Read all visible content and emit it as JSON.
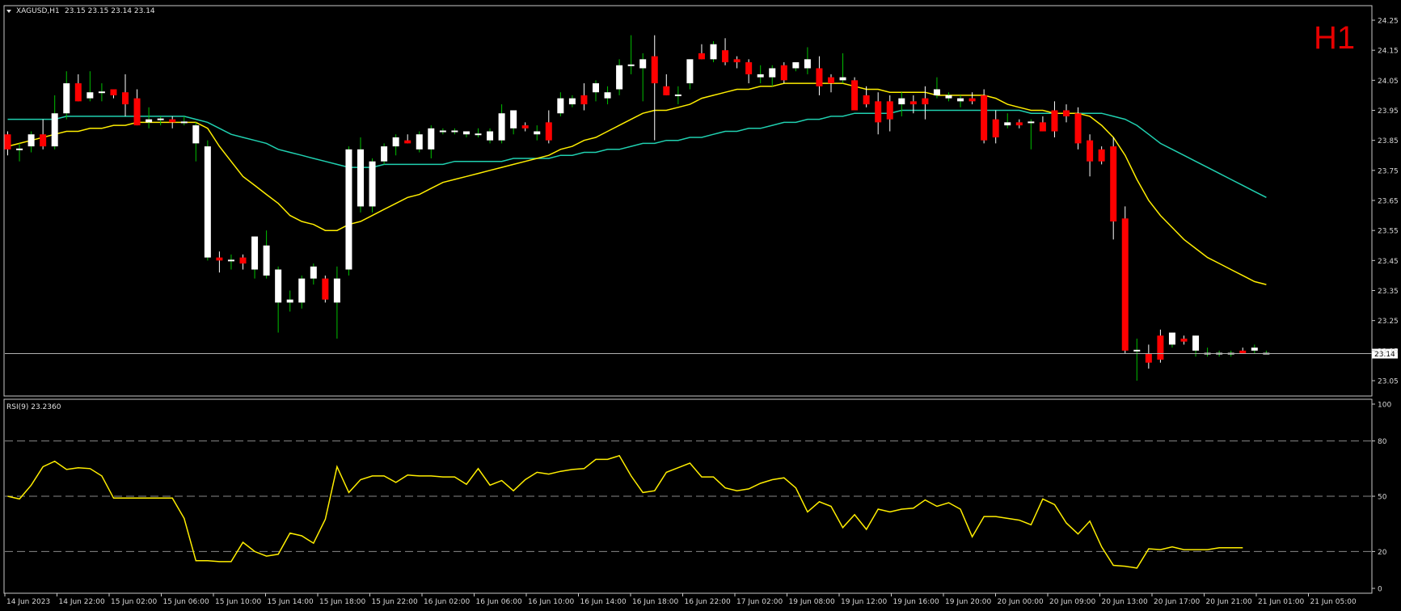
{
  "header": {
    "symbol": "XAGUSD,H1",
    "ohlc": "23.15 23.15 23.14 23.14",
    "timeframe_label": "H1"
  },
  "colors": {
    "background": "#000000",
    "frame": "#c8c8c8",
    "bull_body": "#ffffff",
    "bear_body": "#ff0000",
    "wick_up": "#00c000",
    "wick_down": "#ffffff",
    "ma_fast": "#ffee00",
    "ma_slow": "#20d0b0",
    "rsi_line": "#ffee00",
    "level_line": "#888888"
  },
  "chart_data": [
    {
      "type": "candlestick",
      "title": "",
      "ylim": [
        23.02,
        24.28
      ],
      "y_ticks": [
        "24.25",
        "24.15",
        "24.05",
        "23.95",
        "23.85",
        "23.75",
        "23.65",
        "23.55",
        "23.45",
        "23.35",
        "23.25",
        "23.15",
        "23.05"
      ],
      "x_ticks": [
        "14 Jun 2023",
        "14 Jun 22:00",
        "15 Jun 02:00",
        "15 Jun 06:00",
        "15 Jun 10:00",
        "15 Jun 14:00",
        "15 Jun 18:00",
        "15 Jun 22:00",
        "16 Jun 02:00",
        "16 Jun 06:00",
        "16 Jun 10:00",
        "16 Jun 14:00",
        "16 Jun 18:00",
        "16 Jun 22:00",
        "17 Jun 02:00",
        "19 Jun 08:00",
        "19 Jun 12:00",
        "19 Jun 16:00",
        "19 Jun 20:00",
        "20 Jun 00:00",
        "20 Jun 09:00",
        "20 Jun 13:00",
        "20 Jun 17:00",
        "20 Jun 21:00",
        "21 Jun 01:00",
        "21 Jun 05:00"
      ],
      "current_price_label": "23.14",
      "current_price": 23.14,
      "candles": [
        [
          23.87,
          23.88,
          23.8,
          23.82
        ],
        [
          23.82,
          23.84,
          23.78,
          23.82
        ],
        [
          23.83,
          23.88,
          23.81,
          23.87
        ],
        [
          23.87,
          23.92,
          23.82,
          23.83
        ],
        [
          23.83,
          24.0,
          23.82,
          23.94
        ],
        [
          23.94,
          24.08,
          23.92,
          24.04
        ],
        [
          24.04,
          24.07,
          23.98,
          23.98
        ],
        [
          23.99,
          24.08,
          23.98,
          24.01
        ],
        [
          24.01,
          24.04,
          23.98,
          24.01
        ],
        [
          24.02,
          24.02,
          23.99,
          24.0
        ],
        [
          24.01,
          24.07,
          23.93,
          23.97
        ],
        [
          23.99,
          24.02,
          23.9,
          23.9
        ],
        [
          23.91,
          23.96,
          23.89,
          23.92
        ],
        [
          23.92,
          23.93,
          23.9,
          23.92
        ],
        [
          23.92,
          23.93,
          23.89,
          23.91
        ],
        [
          23.91,
          23.93,
          23.9,
          23.91
        ],
        [
          23.84,
          23.91,
          23.78,
          23.9
        ],
        [
          23.46,
          23.85,
          23.45,
          23.83
        ],
        [
          23.46,
          23.48,
          23.41,
          23.45
        ],
        [
          23.45,
          23.47,
          23.42,
          23.45
        ],
        [
          23.46,
          23.47,
          23.42,
          23.44
        ],
        [
          23.42,
          23.53,
          23.39,
          23.53
        ],
        [
          23.4,
          23.55,
          23.39,
          23.5
        ],
        [
          23.31,
          23.43,
          23.21,
          23.42
        ],
        [
          23.31,
          23.35,
          23.28,
          23.32
        ],
        [
          23.31,
          23.4,
          23.29,
          23.39
        ],
        [
          23.39,
          23.44,
          23.37,
          23.43
        ],
        [
          23.39,
          23.4,
          23.31,
          23.32
        ],
        [
          23.31,
          23.43,
          23.19,
          23.39
        ],
        [
          23.42,
          23.83,
          23.4,
          23.82
        ],
        [
          23.63,
          23.86,
          23.61,
          23.82
        ],
        [
          23.63,
          23.79,
          23.61,
          23.78
        ],
        [
          23.78,
          23.84,
          23.77,
          23.83
        ],
        [
          23.83,
          23.87,
          23.8,
          23.86
        ],
        [
          23.85,
          23.87,
          23.84,
          23.84
        ],
        [
          23.82,
          23.88,
          23.81,
          23.87
        ],
        [
          23.82,
          23.9,
          23.79,
          23.89
        ],
        [
          23.88,
          23.89,
          23.87,
          23.88
        ],
        [
          23.88,
          23.89,
          23.87,
          23.88
        ],
        [
          23.87,
          23.88,
          23.86,
          23.88
        ],
        [
          23.87,
          23.89,
          23.86,
          23.87
        ],
        [
          23.85,
          23.89,
          23.84,
          23.88
        ],
        [
          23.85,
          23.97,
          23.84,
          23.94
        ],
        [
          23.89,
          23.95,
          23.87,
          23.95
        ],
        [
          23.9,
          23.91,
          23.88,
          23.89
        ],
        [
          23.87,
          23.9,
          23.85,
          23.88
        ],
        [
          23.91,
          23.95,
          23.84,
          23.85
        ],
        [
          23.94,
          24.01,
          23.93,
          23.99
        ],
        [
          23.97,
          24.0,
          23.96,
          23.99
        ],
        [
          24.0,
          24.04,
          23.95,
          23.97
        ],
        [
          24.01,
          24.05,
          23.98,
          24.04
        ],
        [
          23.99,
          24.03,
          23.97,
          24.01
        ],
        [
          24.02,
          24.12,
          24.0,
          24.1
        ],
        [
          24.1,
          24.2,
          24.07,
          24.1
        ],
        [
          24.09,
          24.14,
          23.98,
          24.12
        ],
        [
          24.13,
          24.2,
          23.85,
          24.04
        ],
        [
          24.03,
          24.07,
          24.0,
          24.0
        ],
        [
          24.0,
          24.03,
          23.97,
          24.0
        ],
        [
          24.04,
          24.12,
          24.02,
          24.12
        ],
        [
          24.14,
          24.17,
          24.12,
          24.12
        ],
        [
          24.12,
          24.18,
          24.11,
          24.17
        ],
        [
          24.15,
          24.19,
          24.1,
          24.11
        ],
        [
          24.12,
          24.13,
          24.09,
          24.11
        ],
        [
          24.11,
          24.12,
          24.04,
          24.07
        ],
        [
          24.06,
          24.1,
          24.04,
          24.07
        ],
        [
          24.06,
          24.1,
          24.03,
          24.09
        ],
        [
          24.1,
          24.11,
          24.04,
          24.05
        ],
        [
          24.09,
          24.11,
          24.08,
          24.11
        ],
        [
          24.09,
          24.16,
          24.07,
          24.12
        ],
        [
          24.09,
          24.13,
          24.0,
          24.03
        ],
        [
          24.06,
          24.07,
          24.01,
          24.04
        ],
        [
          24.05,
          24.14,
          24.04,
          24.06
        ],
        [
          24.05,
          24.06,
          23.95,
          23.95
        ],
        [
          24.0,
          24.03,
          23.96,
          23.97
        ],
        [
          23.98,
          24.01,
          23.87,
          23.91
        ],
        [
          23.98,
          24.0,
          23.88,
          23.92
        ],
        [
          23.97,
          24.01,
          23.93,
          23.99
        ],
        [
          23.98,
          24.0,
          23.94,
          23.97
        ],
        [
          23.99,
          24.03,
          23.92,
          23.97
        ],
        [
          24.0,
          24.06,
          23.99,
          24.02
        ],
        [
          23.99,
          24.01,
          23.98,
          24.0
        ],
        [
          23.98,
          24.0,
          23.96,
          23.99
        ],
        [
          23.99,
          24.01,
          23.97,
          23.98
        ],
        [
          24.0,
          24.02,
          23.84,
          23.85
        ],
        [
          23.92,
          23.95,
          23.84,
          23.86
        ],
        [
          23.9,
          23.94,
          23.89,
          23.91
        ],
        [
          23.91,
          23.92,
          23.89,
          23.9
        ],
        [
          23.91,
          23.92,
          23.82,
          23.91
        ],
        [
          23.91,
          23.93,
          23.88,
          23.88
        ],
        [
          23.95,
          23.98,
          23.86,
          23.88
        ],
        [
          23.95,
          23.97,
          23.91,
          23.93
        ],
        [
          23.94,
          23.96,
          23.82,
          23.84
        ],
        [
          23.85,
          23.87,
          23.73,
          23.78
        ],
        [
          23.82,
          23.83,
          23.77,
          23.78
        ],
        [
          23.83,
          23.86,
          23.52,
          23.58
        ],
        [
          23.59,
          23.63,
          23.14,
          23.15
        ],
        [
          23.15,
          23.19,
          23.05,
          23.15
        ],
        [
          23.14,
          23.17,
          23.09,
          23.11
        ],
        [
          23.2,
          23.22,
          23.11,
          23.12
        ],
        [
          23.17,
          23.21,
          23.16,
          23.21
        ],
        [
          23.19,
          23.2,
          23.17,
          23.18
        ],
        [
          23.15,
          23.2,
          23.13,
          23.2
        ],
        [
          23.14,
          23.16,
          23.13,
          23.14
        ],
        [
          23.14,
          23.15,
          23.13,
          23.14
        ],
        [
          23.14,
          23.15,
          23.13,
          23.14
        ],
        [
          23.15,
          23.16,
          23.14,
          23.14
        ],
        [
          23.15,
          23.17,
          23.14,
          23.16
        ],
        [
          23.14,
          23.15,
          23.14,
          23.14
        ]
      ],
      "ma_fast": [
        23.83,
        23.84,
        23.85,
        23.86,
        23.87,
        23.88,
        23.88,
        23.89,
        23.89,
        23.9,
        23.9,
        23.91,
        23.91,
        23.91,
        23.91,
        23.91,
        23.91,
        23.89,
        23.83,
        23.78,
        23.73,
        23.7,
        23.67,
        23.64,
        23.6,
        23.58,
        23.57,
        23.55,
        23.55,
        23.57,
        23.58,
        23.6,
        23.62,
        23.64,
        23.66,
        23.67,
        23.69,
        23.71,
        23.72,
        23.73,
        23.74,
        23.75,
        23.76,
        23.77,
        23.78,
        23.79,
        23.8,
        23.82,
        23.83,
        23.85,
        23.86,
        23.88,
        23.9,
        23.92,
        23.94,
        23.95,
        23.95,
        23.96,
        23.97,
        23.99,
        24.0,
        24.01,
        24.02,
        24.02,
        24.03,
        24.03,
        24.04,
        24.04,
        24.04,
        24.04,
        24.04,
        24.04,
        24.03,
        24.02,
        24.02,
        24.01,
        24.01,
        24.01,
        24.01,
        24.0,
        24.0,
        24.0,
        24.0,
        24.0,
        23.99,
        23.97,
        23.96,
        23.95,
        23.95,
        23.94,
        23.94,
        23.94,
        23.93,
        23.9,
        23.86,
        23.8,
        23.72,
        23.65,
        23.6,
        23.56,
        23.52,
        23.49,
        23.46,
        23.44,
        23.42,
        23.4,
        23.38,
        23.37
      ],
      "ma_slow": [
        23.92,
        23.92,
        23.92,
        23.92,
        23.92,
        23.93,
        23.93,
        23.93,
        23.93,
        23.93,
        23.93,
        23.93,
        23.93,
        23.93,
        23.93,
        23.93,
        23.92,
        23.91,
        23.89,
        23.87,
        23.86,
        23.85,
        23.84,
        23.82,
        23.81,
        23.8,
        23.79,
        23.78,
        23.77,
        23.76,
        23.76,
        23.76,
        23.77,
        23.77,
        23.77,
        23.77,
        23.77,
        23.77,
        23.78,
        23.78,
        23.78,
        23.78,
        23.78,
        23.79,
        23.79,
        23.79,
        23.79,
        23.8,
        23.8,
        23.81,
        23.81,
        23.82,
        23.82,
        23.83,
        23.84,
        23.84,
        23.85,
        23.85,
        23.86,
        23.86,
        23.87,
        23.88,
        23.88,
        23.89,
        23.89,
        23.9,
        23.91,
        23.91,
        23.92,
        23.92,
        23.93,
        23.93,
        23.94,
        23.94,
        23.94,
        23.94,
        23.95,
        23.95,
        23.95,
        23.95,
        23.95,
        23.95,
        23.95,
        23.95,
        23.95,
        23.95,
        23.95,
        23.94,
        23.94,
        23.94,
        23.94,
        23.94,
        23.94,
        23.94,
        23.93,
        23.92,
        23.9,
        23.87,
        23.84,
        23.82,
        23.8,
        23.78,
        23.76,
        23.74,
        23.72,
        23.7,
        23.68,
        23.66
      ]
    },
    {
      "type": "line",
      "title": "",
      "indicator_label": "RSI(9) 23.2360",
      "ylim": [
        0,
        100
      ],
      "y_ticks": [
        "100",
        "80",
        "50",
        "20",
        "0"
      ],
      "levels": [
        80,
        50,
        20
      ],
      "values": [
        50.0,
        48.5,
        56.0,
        66.0,
        69.0,
        64.5,
        65.5,
        65.0,
        61.0,
        49.0,
        49.0,
        49.0,
        49.0,
        49.0,
        49.0,
        38.0,
        15.0,
        15.0,
        14.5,
        14.5,
        25.0,
        20.0,
        17.5,
        18.5,
        30.0,
        28.5,
        24.5,
        37.5,
        66.0,
        52.0,
        59.0,
        61.0,
        61.0,
        57.5,
        61.5,
        61.0,
        61.0,
        60.5,
        60.5,
        56.5,
        65.0,
        56.0,
        58.5,
        53.0,
        59.0,
        63.0,
        62.0,
        63.5,
        64.5,
        65.0,
        70.0,
        70.0,
        72.0,
        61.0,
        52.0,
        53.0,
        63.0,
        65.5,
        68.0,
        60.5,
        60.5,
        54.5,
        53.0,
        54.0,
        57.0,
        59.0,
        60.0,
        54.5,
        41.5,
        47.0,
        44.5,
        33.0,
        40.0,
        32.0,
        43.0,
        41.5,
        43.0,
        43.5,
        48.0,
        44.5,
        46.5,
        43.0,
        28.0,
        39.0,
        39.0,
        38.0,
        37.0,
        34.5,
        48.5,
        45.5,
        35.5,
        29.5,
        36.5,
        22.5,
        12.5,
        12.0,
        11.0,
        21.5,
        21.0,
        22.5,
        21.0,
        21.0,
        21.0,
        22.0,
        22.0,
        22.0
      ]
    }
  ]
}
